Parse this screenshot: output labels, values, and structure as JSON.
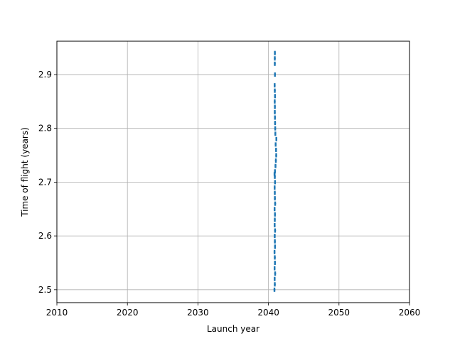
{
  "chart_data": {
    "type": "scatter",
    "xlabel": "Launch year",
    "ylabel": "Time of flight (years)",
    "xlim": [
      2010,
      2060
    ],
    "ylim": [
      2.476,
      2.962
    ],
    "xticks": [
      2010,
      2020,
      2030,
      2040,
      2050,
      2060
    ],
    "yticks": [
      2.5,
      2.6,
      2.7,
      2.8,
      2.9
    ],
    "xtick_labels": [
      "2010",
      "2020",
      "2030",
      "2040",
      "2050",
      "2060"
    ],
    "ytick_labels": [
      "2.5",
      "2.6",
      "2.7",
      "2.8",
      "2.9"
    ],
    "grid": true,
    "color": "#1f77b4",
    "series": [
      {
        "x": [
          2040.85,
          2040.9,
          2040.88,
          2040.95,
          2040.87,
          2040.92,
          2040.9,
          2040.86,
          2040.93,
          2040.91,
          2040.89,
          2040.94,
          2040.88,
          2040.9,
          2040.92,
          2040.87,
          2040.95,
          2040.91,
          2040.9,
          2040.88,
          2040.93,
          2040.9,
          2040.86,
          2040.92,
          2041.0,
          2041.05,
          2041.1,
          2041.08,
          2041.02,
          2041.12,
          2040.98,
          2040.96,
          2040.94,
          2040.92,
          2040.9,
          2040.91,
          2040.89,
          2040.93,
          2040.9,
          2040.88,
          2040.92,
          2040.9,
          2040.9,
          2040.91
        ],
        "y": [
          2.5,
          2.51,
          2.52,
          2.53,
          2.54,
          2.55,
          2.56,
          2.57,
          2.58,
          2.59,
          2.6,
          2.61,
          2.62,
          2.63,
          2.64,
          2.65,
          2.66,
          2.67,
          2.68,
          2.69,
          2.7,
          2.71,
          2.715,
          2.72,
          2.73,
          2.74,
          2.75,
          2.76,
          2.77,
          2.78,
          2.79,
          2.8,
          2.81,
          2.82,
          2.83,
          2.84,
          2.85,
          2.86,
          2.87,
          2.88,
          2.9,
          2.92,
          2.93,
          2.94
        ]
      }
    ]
  }
}
